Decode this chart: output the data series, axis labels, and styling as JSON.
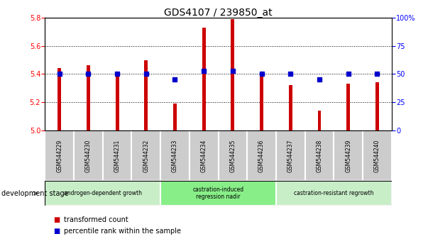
{
  "title": "GDS4107 / 239850_at",
  "categories": [
    "GSM544229",
    "GSM544230",
    "GSM544231",
    "GSM544232",
    "GSM544233",
    "GSM544234",
    "GSM544235",
    "GSM544236",
    "GSM544237",
    "GSM544238",
    "GSM544239",
    "GSM544240"
  ],
  "bar_values": [
    5.44,
    5.46,
    5.41,
    5.5,
    5.19,
    5.73,
    5.79,
    5.4,
    5.32,
    5.14,
    5.33,
    5.34
  ],
  "percentile_values": [
    50,
    50,
    50,
    50,
    45,
    53,
    53,
    50,
    50,
    45,
    50,
    50
  ],
  "ylim_left": [
    5.0,
    5.8
  ],
  "ylim_right": [
    0,
    100
  ],
  "yticks_left": [
    5.0,
    5.2,
    5.4,
    5.6,
    5.8
  ],
  "yticks_right": [
    0,
    25,
    50,
    75,
    100
  ],
  "bar_color": "#cc0000",
  "percentile_color": "#0000cc",
  "bar_width": 0.12,
  "groups": [
    {
      "label": "androgen-dependent growth",
      "start": 0,
      "end": 3,
      "color": "#c8eec8"
    },
    {
      "label": "castration-induced\nregression nadir",
      "start": 4,
      "end": 7,
      "color": "#88ee88"
    },
    {
      "label": "castration-resistant regrowth",
      "start": 8,
      "end": 11,
      "color": "#c8eec8"
    }
  ],
  "dev_stage_label": "development stage",
  "legend_items": [
    {
      "label": "transformed count",
      "color": "#cc0000"
    },
    {
      "label": "percentile rank within the sample",
      "color": "#0000cc"
    }
  ],
  "right_tick_labels": [
    "0",
    "25",
    "50",
    "75",
    "100%"
  ],
  "xticklabel_bg": "#cccccc",
  "xticklabel_border": "#ffffff"
}
